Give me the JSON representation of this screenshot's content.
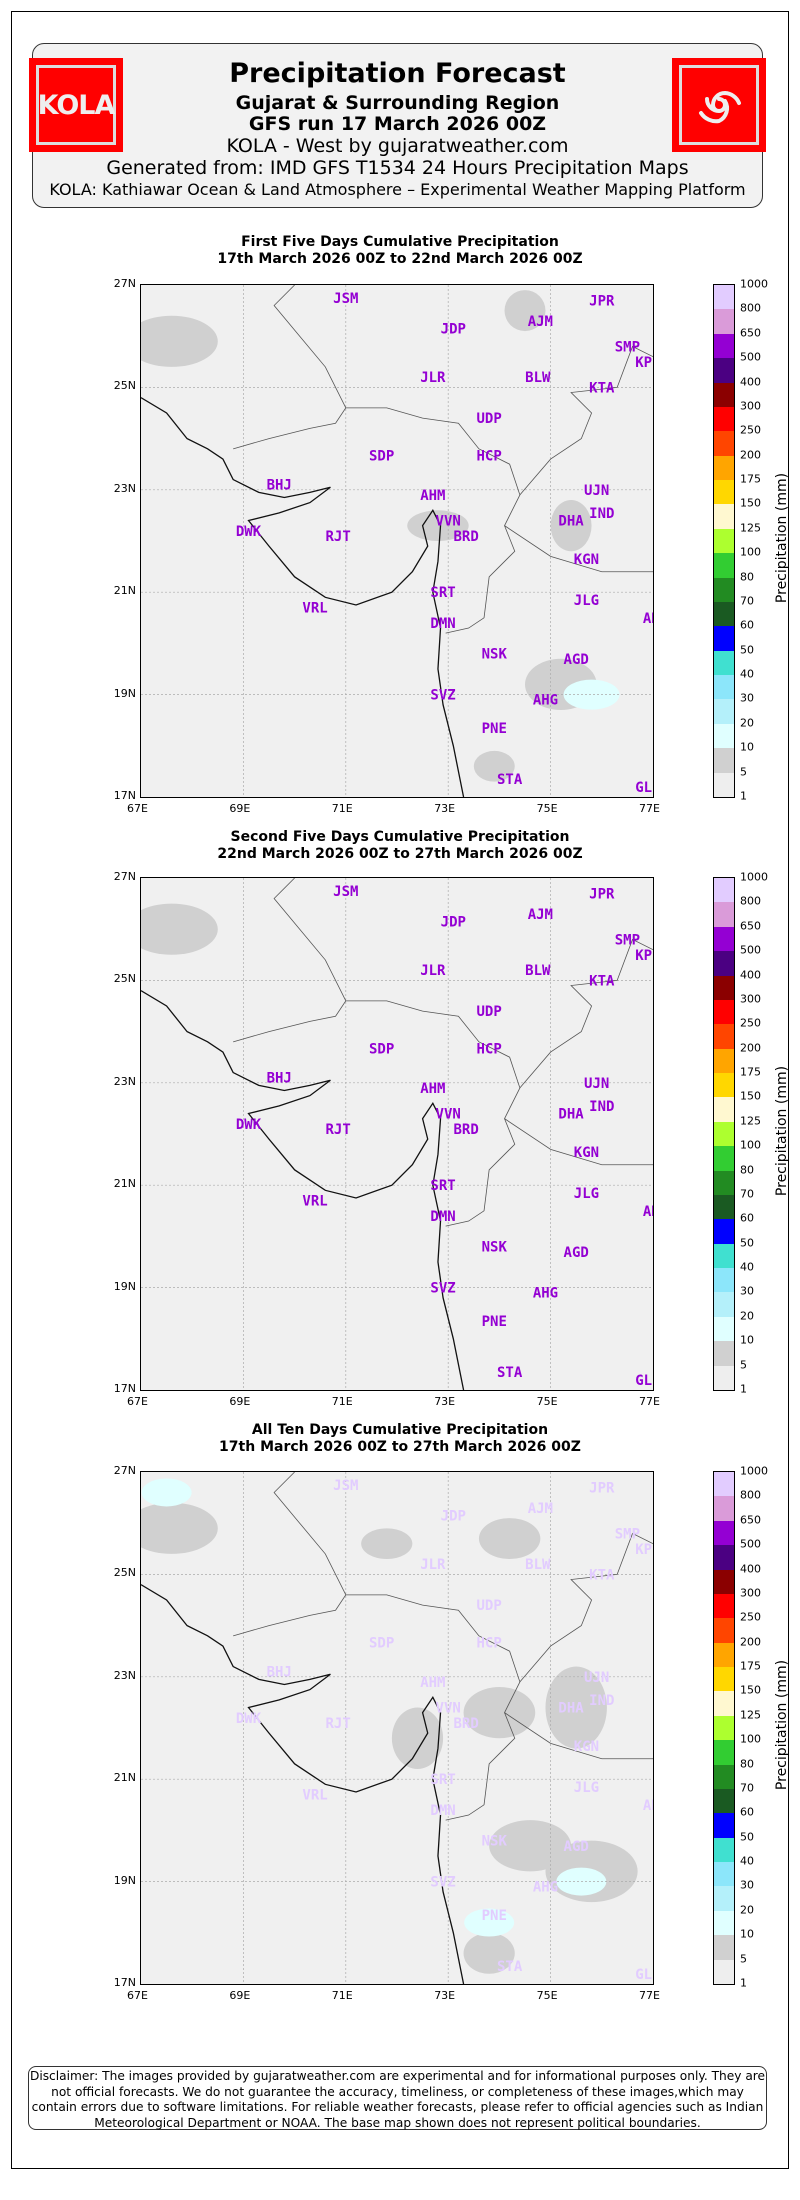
{
  "header": {
    "title": "Precipitation Forecast",
    "region": "Gujarat & Surrounding Region",
    "run": "GFS run 17 March 2026 00Z",
    "byline": "KOLA - West by gujaratweather.com",
    "source": "Generated from: IMD GFS T1534 24 Hours Precipitation Maps",
    "platform": "KOLA: Kathiawar Ocean & Land Atmosphere – Experimental Weather Mapping Platform",
    "logo_left_text": "KOLA",
    "logo_right_icon": "cyclone-icon"
  },
  "chart_data": {
    "type": "heatmap",
    "lon_ticks": [
      "67E",
      "69E",
      "71E",
      "73E",
      "75E",
      "77E"
    ],
    "lat_ticks": [
      "27N",
      "25N",
      "23N",
      "21N",
      "19N",
      "17N"
    ],
    "lon_range": [
      67,
      77
    ],
    "lat_range": [
      17,
      27
    ],
    "colorbar": {
      "label": "Precipitation (mm)",
      "levels": [
        "1",
        "5",
        "10",
        "20",
        "30",
        "40",
        "50",
        "60",
        "70",
        "80",
        "100",
        "125",
        "150",
        "175",
        "200",
        "250",
        "300",
        "400",
        "500",
        "650",
        "800",
        "1000"
      ],
      "colors": [
        "#eeeeee",
        "#d0d0d0",
        "#e0ffff",
        "#b4f0fa",
        "#8ce6fa",
        "#40e0d0",
        "#0000ff",
        "#1a5a22",
        "#228b22",
        "#32cd32",
        "#adff2f",
        "#fff8d0",
        "#ffd700",
        "#ffa500",
        "#ff4500",
        "#ff0000",
        "#8b0000",
        "#4b0082",
        "#9400d3",
        "#da9bd9",
        "#e2ccff"
      ]
    },
    "panels": [
      {
        "title": "First Five Days Cumulative Precipitation",
        "period": "17th March 2026 00Z to 22nd March 2026 00Z",
        "label_color": "#9400d3"
      },
      {
        "title": "Second Five Days Cumulative Precipitation",
        "period": "22nd March 2026 00Z to 27th March 2026 00Z",
        "label_color": "#9400d3"
      },
      {
        "title": "All Ten Days Cumulative Precipitation",
        "period": "17th March 2026 00Z to 27th March 2026 00Z",
        "label_color": "#e2ccff"
      }
    ],
    "cities": [
      {
        "name": "JSM",
        "lon": 71.0,
        "lat": 26.75
      },
      {
        "name": "JDP",
        "lon": 73.1,
        "lat": 26.15
      },
      {
        "name": "AJM",
        "lon": 74.8,
        "lat": 26.3
      },
      {
        "name": "JPR",
        "lon": 76.0,
        "lat": 26.7
      },
      {
        "name": "SMP",
        "lon": 76.5,
        "lat": 25.8
      },
      {
        "name": "KPE",
        "lon": 76.9,
        "lat": 25.5
      },
      {
        "name": "JLR",
        "lon": 72.7,
        "lat": 25.2
      },
      {
        "name": "BLW",
        "lon": 74.75,
        "lat": 25.2
      },
      {
        "name": "KTA",
        "lon": 76.0,
        "lat": 25.0
      },
      {
        "name": "UDP",
        "lon": 73.8,
        "lat": 24.4
      },
      {
        "name": "SDP",
        "lon": 71.7,
        "lat": 23.67
      },
      {
        "name": "HCP",
        "lon": 73.8,
        "lat": 23.67
      },
      {
        "name": "BHJ",
        "lon": 69.7,
        "lat": 23.1
      },
      {
        "name": "AHM",
        "lon": 72.7,
        "lat": 22.9
      },
      {
        "name": "UJN",
        "lon": 75.9,
        "lat": 23.0
      },
      {
        "name": "VVN",
        "lon": 73.0,
        "lat": 22.4
      },
      {
        "name": "DHA",
        "lon": 75.4,
        "lat": 22.4
      },
      {
        "name": "IND",
        "lon": 76.0,
        "lat": 22.55
      },
      {
        "name": "DWK",
        "lon": 69.1,
        "lat": 22.2
      },
      {
        "name": "RJT",
        "lon": 70.85,
        "lat": 22.1
      },
      {
        "name": "BRD",
        "lon": 73.35,
        "lat": 22.1
      },
      {
        "name": "KGN",
        "lon": 75.7,
        "lat": 21.65
      },
      {
        "name": "SRT",
        "lon": 72.9,
        "lat": 21.0
      },
      {
        "name": "JLG",
        "lon": 75.7,
        "lat": 20.85
      },
      {
        "name": "VRL",
        "lon": 70.4,
        "lat": 20.7
      },
      {
        "name": "AKL",
        "lon": 77.05,
        "lat": 20.5
      },
      {
        "name": "DMN",
        "lon": 72.9,
        "lat": 20.4
      },
      {
        "name": "NSK",
        "lon": 73.9,
        "lat": 19.8
      },
      {
        "name": "AGD",
        "lon": 75.5,
        "lat": 19.7
      },
      {
        "name": "SVZ",
        "lon": 72.9,
        "lat": 19.0
      },
      {
        "name": "AHG",
        "lon": 74.9,
        "lat": 18.9
      },
      {
        "name": "PNE",
        "lon": 73.9,
        "lat": 18.35
      },
      {
        "name": "STA",
        "lon": 74.2,
        "lat": 17.35
      },
      {
        "name": "GLH",
        "lon": 76.9,
        "lat": 17.2
      }
    ]
  },
  "disclaimer": "Disclaimer: The images provided by gujaratweather.com are experimental and for informational purposes only. They are not official forecasts. We do not guarantee the accuracy, timeliness, or completeness of these images,which may contain errors due to software limitations. For reliable weather forecasts, please refer to official agencies such as Indian Meteorological Department or NOAA. The base map shown does not represent political boundaries."
}
